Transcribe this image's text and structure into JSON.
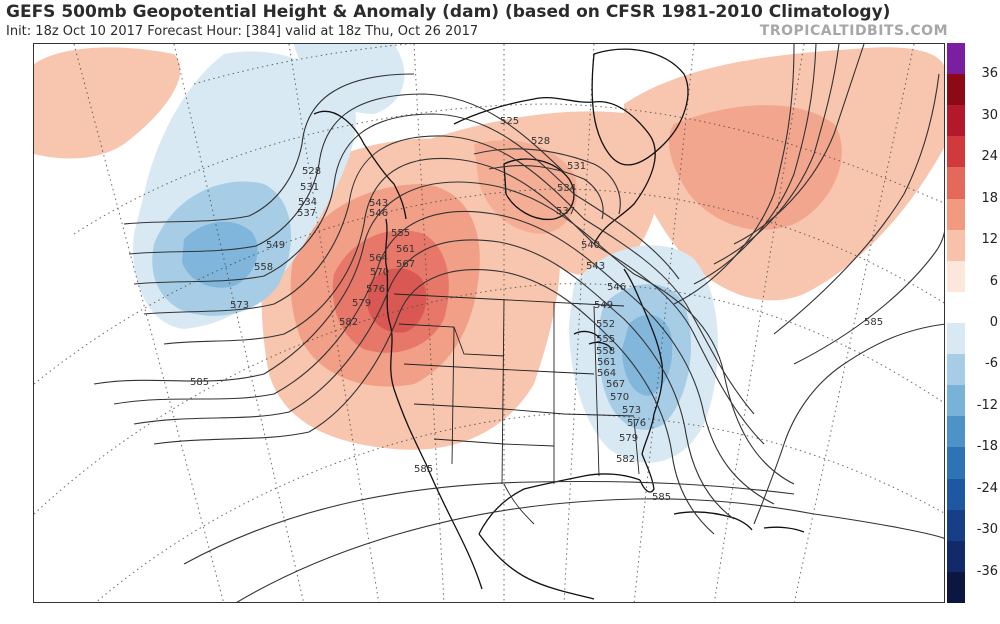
{
  "header": {
    "title": "GEFS 500mb Geopotential Height & Anomaly (dam) (based on CFSR 1981-2010 Climatology)",
    "subtitle": "Init: 18z Oct 10 2017   Forecast Hour: [384]   valid at 18z Thu, Oct 26 2017",
    "brand": "TROPICALTIDBITS.COM"
  },
  "colorbar": {
    "labels": [
      "36",
      "30",
      "24",
      "18",
      "12",
      "6",
      "0",
      "-6",
      "-12",
      "-18",
      "-24",
      "-30",
      "-36"
    ],
    "colors": [
      "#7a1fa2",
      "#8c0a16",
      "#b3182b",
      "#d03a3c",
      "#e4695a",
      "#f19a80",
      "#f8c2aa",
      "#fde6da",
      "#ffffff",
      "#d8e9f4",
      "#a7cde6",
      "#79b2d8",
      "#4d93c8",
      "#2d73b6",
      "#1f58a2",
      "#173f88",
      "#122a6a",
      "#0b1740"
    ]
  },
  "map": {
    "contour_labels": [
      "528",
      "531",
      "534",
      "537",
      "549",
      "558",
      "573",
      "585",
      "582",
      "579",
      "576",
      "570",
      "564",
      "567",
      "561",
      "555",
      "543",
      "546",
      "525",
      "528",
      "531",
      "534",
      "537",
      "540",
      "543",
      "546",
      "549",
      "552",
      "555",
      "558",
      "561",
      "564",
      "567",
      "570",
      "573",
      "576",
      "579",
      "582",
      "585",
      "585",
      "585"
    ],
    "anomaly_colors": {
      "positive_light": "#f8c2aa",
      "positive_mid": "#f19a80",
      "positive_strong": "#e4695a",
      "positive_core": "#d03a3c",
      "negative_light": "#d8e9f4",
      "negative_mid": "#a7cde6",
      "negative_strong": "#79b2d8"
    }
  }
}
